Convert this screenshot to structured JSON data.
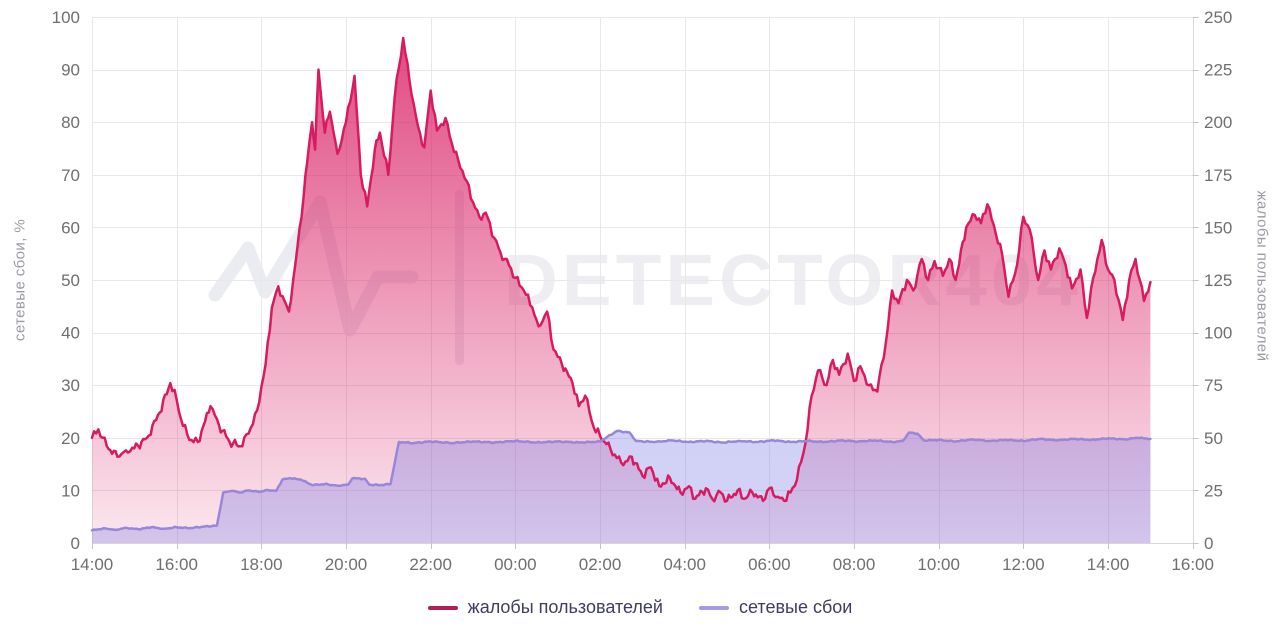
{
  "watermark": {
    "text": "DETECTOR404",
    "icon": "pulse-icon"
  },
  "legend": {
    "position": "bottom"
  },
  "chart_data": {
    "type": "area",
    "title": "",
    "grid": true,
    "legend_position": "bottom",
    "x_axis": {
      "tick_labels": [
        "14:00",
        "16:00",
        "18:00",
        "20:00",
        "22:00",
        "00:00",
        "02:00",
        "04:00",
        "06:00",
        "08:00",
        "10:00",
        "12:00",
        "14:00",
        "16:00"
      ],
      "tick_interval_hours": 2,
      "range_hours": [
        0,
        26
      ],
      "note": "hours offset from 14:00"
    },
    "left_axis": {
      "title": "сетевые сбои, %",
      "min": 0,
      "max": 100,
      "tick_step": 10
    },
    "right_axis": {
      "title": "жалобы пользователей",
      "min": 0,
      "max": 250,
      "tick_step": 25
    },
    "series": [
      {
        "id": "user-complaints",
        "name": "жалобы пользователей",
        "axis": "right",
        "color": "#d81b60",
        "legend_color": "#b02058",
        "fill_top": "rgba(216,27,96,0.82)",
        "fill_bottom": "rgba(216,27,96,0.10)",
        "points": [
          [
            0,
            50
          ],
          [
            0.15,
            54
          ],
          [
            0.35,
            46
          ],
          [
            0.6,
            41
          ],
          [
            0.8,
            44
          ],
          [
            1.0,
            45
          ],
          [
            1.3,
            50
          ],
          [
            1.6,
            62
          ],
          [
            1.85,
            76
          ],
          [
            2.0,
            68
          ],
          [
            2.1,
            59
          ],
          [
            2.3,
            49
          ],
          [
            2.5,
            48
          ],
          [
            2.8,
            65
          ],
          [
            3.0,
            56
          ],
          [
            3.25,
            48
          ],
          [
            3.5,
            46
          ],
          [
            3.7,
            52
          ],
          [
            3.9,
            63
          ],
          [
            4.1,
            85
          ],
          [
            4.25,
            112
          ],
          [
            4.4,
            122
          ],
          [
            4.55,
            115
          ],
          [
            4.65,
            110
          ],
          [
            4.8,
            132
          ],
          [
            5.0,
            165
          ],
          [
            5.12,
            188
          ],
          [
            5.2,
            200
          ],
          [
            5.27,
            187
          ],
          [
            5.35,
            225
          ],
          [
            5.5,
            195
          ],
          [
            5.62,
            205
          ],
          [
            5.8,
            185
          ],
          [
            6.0,
            200
          ],
          [
            6.2,
            222
          ],
          [
            6.35,
            175
          ],
          [
            6.5,
            160
          ],
          [
            6.68,
            187
          ],
          [
            6.8,
            195
          ],
          [
            7.0,
            175
          ],
          [
            7.15,
            212
          ],
          [
            7.35,
            240
          ],
          [
            7.55,
            213
          ],
          [
            7.7,
            198
          ],
          [
            7.85,
            188
          ],
          [
            8.0,
            215
          ],
          [
            8.15,
            196
          ],
          [
            8.35,
            202
          ],
          [
            8.5,
            190
          ],
          [
            8.65,
            182
          ],
          [
            8.85,
            172
          ],
          [
            9.0,
            162
          ],
          [
            9.15,
            155
          ],
          [
            9.3,
            157
          ],
          [
            9.5,
            145
          ],
          [
            9.65,
            138
          ],
          [
            9.85,
            132
          ],
          [
            10.0,
            126
          ],
          [
            10.2,
            120
          ],
          [
            10.4,
            112
          ],
          [
            10.55,
            103
          ],
          [
            10.75,
            110
          ],
          [
            10.9,
            92
          ],
          [
            11.1,
            85
          ],
          [
            11.35,
            76
          ],
          [
            11.5,
            65
          ],
          [
            11.65,
            70
          ],
          [
            11.85,
            55
          ],
          [
            12.0,
            51
          ],
          [
            12.15,
            47
          ],
          [
            12.35,
            42
          ],
          [
            12.55,
            37
          ],
          [
            12.75,
            41
          ],
          [
            13.0,
            32
          ],
          [
            13.2,
            36
          ],
          [
            13.4,
            27
          ],
          [
            13.65,
            31
          ],
          [
            13.9,
            24
          ],
          [
            14.1,
            27
          ],
          [
            14.25,
            21
          ],
          [
            14.5,
            26
          ],
          [
            14.65,
            21
          ],
          [
            14.85,
            24
          ],
          [
            15.0,
            20
          ],
          [
            15.25,
            25
          ],
          [
            15.4,
            21
          ],
          [
            15.6,
            24
          ],
          [
            15.85,
            20
          ],
          [
            16.0,
            26
          ],
          [
            16.2,
            22
          ],
          [
            16.35,
            20
          ],
          [
            16.5,
            24
          ],
          [
            16.65,
            30
          ],
          [
            16.85,
            47
          ],
          [
            17.0,
            70
          ],
          [
            17.15,
            82
          ],
          [
            17.35,
            75
          ],
          [
            17.5,
            87
          ],
          [
            17.65,
            80
          ],
          [
            17.85,
            90
          ],
          [
            18.0,
            77
          ],
          [
            18.15,
            84
          ],
          [
            18.35,
            75
          ],
          [
            18.55,
            72
          ],
          [
            18.75,
            95
          ],
          [
            18.9,
            120
          ],
          [
            19.05,
            114
          ],
          [
            19.25,
            125
          ],
          [
            19.4,
            120
          ],
          [
            19.6,
            135
          ],
          [
            19.75,
            125
          ],
          [
            19.9,
            134
          ],
          [
            20.1,
            127
          ],
          [
            20.25,
            135
          ],
          [
            20.4,
            125
          ],
          [
            20.65,
            150
          ],
          [
            20.85,
            156
          ],
          [
            21.0,
            152
          ],
          [
            21.15,
            161
          ],
          [
            21.35,
            147
          ],
          [
            21.5,
            137
          ],
          [
            21.65,
            117
          ],
          [
            21.85,
            132
          ],
          [
            22.0,
            155
          ],
          [
            22.15,
            149
          ],
          [
            22.35,
            125
          ],
          [
            22.5,
            139
          ],
          [
            22.65,
            130
          ],
          [
            22.85,
            140
          ],
          [
            23.0,
            132
          ],
          [
            23.15,
            121
          ],
          [
            23.35,
            130
          ],
          [
            23.5,
            107
          ],
          [
            23.65,
            126
          ],
          [
            23.85,
            144
          ],
          [
            24.0,
            130
          ],
          [
            24.15,
            125
          ],
          [
            24.35,
            106
          ],
          [
            24.5,
            125
          ],
          [
            24.65,
            135
          ],
          [
            24.85,
            115
          ],
          [
            25.0,
            124
          ]
        ]
      },
      {
        "id": "network-failures",
        "name": "сетевые сбои",
        "axis": "left",
        "color": "#9887d9",
        "legend_color": "#a79bdf",
        "fill_top": "rgba(126,126,229,0.48)",
        "fill_bottom": "rgba(126,126,229,0.33)",
        "points": [
          [
            0,
            2.4
          ],
          [
            0.3,
            2.8
          ],
          [
            0.55,
            2.5
          ],
          [
            0.8,
            2.9
          ],
          [
            1.1,
            2.6
          ],
          [
            1.4,
            3.0
          ],
          [
            1.7,
            2.7
          ],
          [
            2.0,
            3.0
          ],
          [
            2.3,
            2.8
          ],
          [
            2.6,
            3.1
          ],
          [
            2.95,
            3.3
          ],
          [
            3.1,
            9.6
          ],
          [
            3.3,
            9.9
          ],
          [
            3.5,
            9.6
          ],
          [
            3.7,
            10.0
          ],
          [
            3.95,
            9.7
          ],
          [
            4.15,
            10.1
          ],
          [
            4.35,
            9.9
          ],
          [
            4.5,
            12.1
          ],
          [
            4.7,
            12.3
          ],
          [
            4.95,
            12.0
          ],
          [
            5.2,
            11.0
          ],
          [
            5.5,
            11.2
          ],
          [
            5.8,
            10.9
          ],
          [
            6.05,
            11.1
          ],
          [
            6.15,
            12.3
          ],
          [
            6.45,
            12.2
          ],
          [
            6.55,
            11.1
          ],
          [
            6.8,
            11.0
          ],
          [
            7.05,
            11.2
          ],
          [
            7.25,
            19.2
          ],
          [
            7.6,
            19.0
          ],
          [
            8.0,
            19.3
          ],
          [
            8.5,
            19.0
          ],
          [
            9.0,
            19.3
          ],
          [
            9.5,
            19.1
          ],
          [
            10.0,
            19.4
          ],
          [
            10.5,
            19.1
          ],
          [
            11.0,
            19.3
          ],
          [
            11.5,
            19.1
          ],
          [
            12.0,
            19.3
          ],
          [
            12.4,
            21.3
          ],
          [
            12.7,
            21.0
          ],
          [
            12.85,
            19.4
          ],
          [
            13.3,
            19.2
          ],
          [
            13.7,
            19.5
          ],
          [
            14.1,
            19.2
          ],
          [
            14.5,
            19.4
          ],
          [
            14.9,
            19.1
          ],
          [
            15.3,
            19.4
          ],
          [
            15.7,
            19.2
          ],
          [
            16.1,
            19.5
          ],
          [
            16.5,
            19.2
          ],
          [
            16.9,
            19.4
          ],
          [
            17.3,
            19.2
          ],
          [
            17.7,
            19.5
          ],
          [
            18.1,
            19.3
          ],
          [
            18.5,
            19.5
          ],
          [
            18.9,
            19.2
          ],
          [
            19.15,
            19.4
          ],
          [
            19.3,
            21.0
          ],
          [
            19.5,
            20.8
          ],
          [
            19.65,
            19.5
          ],
          [
            20.0,
            19.6
          ],
          [
            20.4,
            19.3
          ],
          [
            20.8,
            19.7
          ],
          [
            21.2,
            19.4
          ],
          [
            21.6,
            19.6
          ],
          [
            22.0,
            19.4
          ],
          [
            22.4,
            19.8
          ],
          [
            22.8,
            19.5
          ],
          [
            23.2,
            19.8
          ],
          [
            23.6,
            19.6
          ],
          [
            24.0,
            19.9
          ],
          [
            24.4,
            19.7
          ],
          [
            24.7,
            20.0
          ],
          [
            25.0,
            19.8
          ]
        ]
      }
    ]
  }
}
